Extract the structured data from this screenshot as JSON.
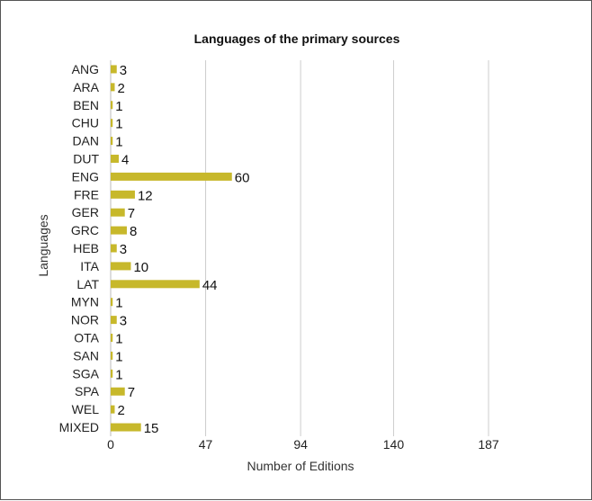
{
  "chart_data": {
    "type": "bar",
    "orientation": "horizontal",
    "title": "Languages of the primary sources",
    "xlabel": "Number of Editions",
    "ylabel": "Languages",
    "categories": [
      "ANG",
      "ARA",
      "BEN",
      "CHU",
      "DAN",
      "DUT",
      "ENG",
      "FRE",
      "GER",
      "GRC",
      "HEB",
      "ITA",
      "LAT",
      "MYN",
      "NOR",
      "OTA",
      "SAN",
      "SGA",
      "SPA",
      "WEL",
      "MIXED"
    ],
    "values": [
      3,
      2,
      1,
      1,
      1,
      4,
      60,
      12,
      7,
      8,
      3,
      10,
      44,
      1,
      3,
      1,
      1,
      1,
      7,
      2,
      15
    ],
    "xticks": [
      "0",
      "47",
      "94",
      "140",
      "187"
    ],
    "xlim": [
      0,
      187
    ],
    "grid": "vertical",
    "bar_color": "#c7b82b",
    "grid_color": "#cccccc"
  }
}
